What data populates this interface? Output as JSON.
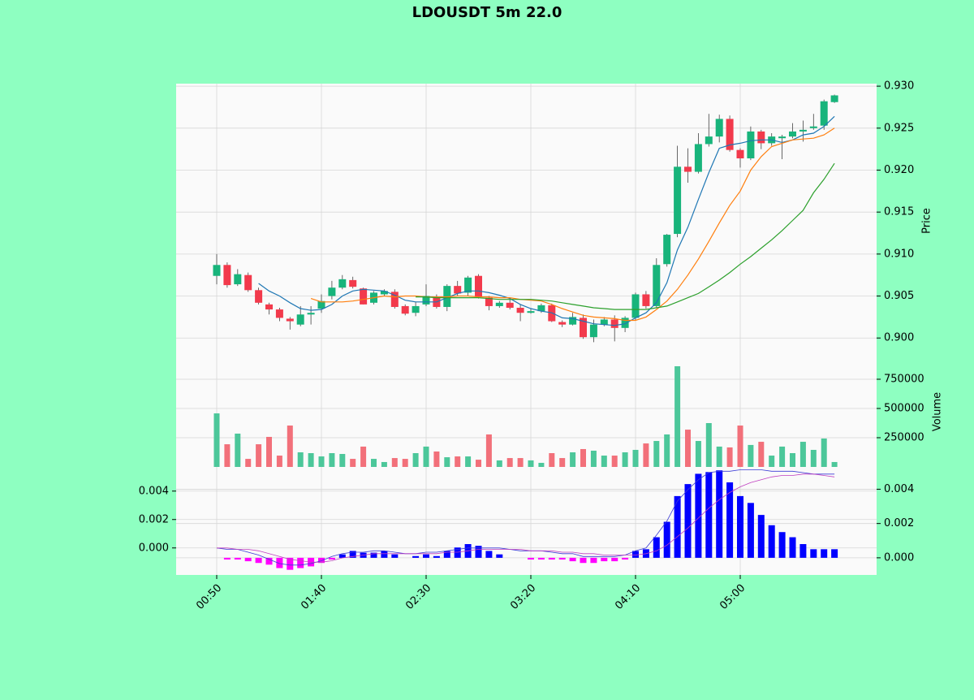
{
  "chart_data": [
    {
      "type": "candlestick",
      "title": "LDOUSDT 5m 22.0",
      "ylabel": "Price",
      "open": [
        0.9074,
        0.9087,
        0.9064,
        0.9075,
        0.9057,
        0.904,
        0.9034,
        0.9023,
        0.9016,
        0.9028,
        0.9035,
        0.905,
        0.906,
        0.9069,
        0.9059,
        0.9042,
        0.9052,
        0.9055,
        0.9038,
        0.903,
        0.904,
        0.9048,
        0.9037,
        0.9062,
        0.9054,
        0.9074,
        0.9048,
        0.9038,
        0.9042,
        0.9036,
        0.903,
        0.9032,
        0.9039,
        0.9019,
        0.9016,
        0.9024,
        0.9001,
        0.9016,
        0.9022,
        0.9012,
        0.9024,
        0.9052,
        0.9038,
        0.9088,
        0.9124,
        0.9204,
        0.9198,
        0.9231,
        0.924,
        0.9261,
        0.9224,
        0.9214,
        0.9246,
        0.9232,
        0.9238,
        0.924,
        0.9246,
        0.925,
        0.9253,
        0.9281
      ],
      "high": [
        0.91,
        0.909,
        0.9082,
        0.9078,
        0.906,
        0.9042,
        0.9036,
        0.9025,
        0.9038,
        0.9038,
        0.9052,
        0.9068,
        0.9075,
        0.9073,
        0.906,
        0.9056,
        0.9058,
        0.9058,
        0.904,
        0.9043,
        0.9064,
        0.9052,
        0.9064,
        0.9068,
        0.9074,
        0.9076,
        0.905,
        0.9044,
        0.9046,
        0.904,
        0.9035,
        0.9041,
        0.9041,
        0.9021,
        0.903,
        0.9028,
        0.9022,
        0.9025,
        0.9027,
        0.9026,
        0.9054,
        0.9056,
        0.9095,
        0.9124,
        0.9229,
        0.9226,
        0.9244,
        0.9267,
        0.9266,
        0.9265,
        0.9226,
        0.9252,
        0.9248,
        0.9244,
        0.9242,
        0.9256,
        0.9259,
        0.9267,
        0.9284,
        0.929
      ],
      "low": [
        0.9064,
        0.906,
        0.9062,
        0.9055,
        0.904,
        0.9028,
        0.902,
        0.901,
        0.9014,
        0.9016,
        0.903,
        0.9046,
        0.9058,
        0.9059,
        0.904,
        0.904,
        0.905,
        0.9035,
        0.9027,
        0.9026,
        0.9038,
        0.9035,
        0.9032,
        0.905,
        0.905,
        0.9047,
        0.9033,
        0.9036,
        0.9034,
        0.902,
        0.9029,
        0.903,
        0.9019,
        0.9013,
        0.9015,
        0.8999,
        0.8995,
        0.9014,
        0.8996,
        0.9007,
        0.9021,
        0.9035,
        0.9036,
        0.9085,
        0.912,
        0.9185,
        0.9196,
        0.9228,
        0.9233,
        0.9222,
        0.9203,
        0.9212,
        0.9225,
        0.9229,
        0.9213,
        0.9238,
        0.9234,
        0.9248,
        0.9248,
        0.928
      ],
      "close": [
        0.9087,
        0.9063,
        0.9076,
        0.9057,
        0.9042,
        0.9034,
        0.9024,
        0.902,
        0.9028,
        0.903,
        0.9044,
        0.906,
        0.907,
        0.9061,
        0.904,
        0.9054,
        0.9056,
        0.9037,
        0.9029,
        0.9038,
        0.905,
        0.9037,
        0.9062,
        0.9053,
        0.9072,
        0.9049,
        0.9038,
        0.9042,
        0.9036,
        0.903,
        0.9032,
        0.9039,
        0.902,
        0.9016,
        0.9025,
        0.9001,
        0.9016,
        0.9022,
        0.9012,
        0.9024,
        0.9052,
        0.9038,
        0.9087,
        0.9123,
        0.9204,
        0.9198,
        0.9231,
        0.924,
        0.9261,
        0.9224,
        0.9214,
        0.9246,
        0.9232,
        0.924,
        0.924,
        0.9246,
        0.9248,
        0.9252,
        0.9282,
        0.9289
      ],
      "up_color": "#18b47b",
      "down_color": "#f23a4c",
      "series": [
        {
          "color": "#1f77b4",
          "values": [
            null,
            null,
            null,
            null,
            0.9065,
            0.9056,
            0.905,
            0.9042,
            0.9035,
            0.9033,
            0.9034,
            0.904,
            0.905,
            0.9056,
            0.9058,
            0.9057,
            0.9056,
            0.9051,
            0.9045,
            0.9043,
            0.9043,
            0.9043,
            0.9048,
            0.9053,
            0.9056,
            0.9056,
            0.9054,
            0.9051,
            0.9047,
            0.904,
            0.9035,
            0.9032,
            0.903,
            0.9024,
            0.9023,
            0.902,
            0.9017,
            0.9016,
            0.9015,
            0.9017,
            0.9024,
            0.903,
            0.9042,
            0.9066,
            0.9105,
            0.9132,
            0.9165,
            0.9197,
            0.9226,
            0.923,
            0.9232,
            0.9235,
            0.9236,
            0.9236,
            0.9233,
            0.9236,
            0.9242,
            0.9244,
            0.9252,
            0.9264
          ]
        },
        {
          "color": "#ff7f0e",
          "values": [
            null,
            null,
            null,
            null,
            null,
            null,
            null,
            null,
            null,
            0.9047,
            0.9043,
            0.9043,
            0.9043,
            0.9044,
            0.9046,
            0.9048,
            0.905,
            0.9049,
            0.905,
            0.905,
            0.9049,
            0.9049,
            0.9049,
            0.905,
            0.905,
            0.9049,
            0.9049,
            0.9048,
            0.9048,
            0.9046,
            0.9045,
            0.9044,
            0.904,
            0.9035,
            0.9031,
            0.9027,
            0.9025,
            0.9024,
            0.9023,
            0.9021,
            0.9021,
            0.9025,
            0.9034,
            0.9044,
            0.9058,
            0.9075,
            0.9094,
            0.9115,
            0.9137,
            0.9158,
            0.9175,
            0.92,
            0.9216,
            0.9228,
            0.9232,
            0.9236,
            0.9237,
            0.9238,
            0.9242,
            0.925
          ]
        },
        {
          "color": "#2ca02c",
          "values": [
            null,
            null,
            null,
            null,
            null,
            null,
            null,
            null,
            null,
            null,
            null,
            null,
            null,
            null,
            null,
            null,
            null,
            null,
            null,
            0.9049,
            0.9049,
            0.9048,
            0.9048,
            0.9048,
            0.9048,
            0.9048,
            0.9047,
            0.9046,
            0.9046,
            0.9046,
            0.9046,
            0.9045,
            0.9044,
            0.9042,
            0.904,
            0.9038,
            0.9036,
            0.9035,
            0.9034,
            0.9034,
            0.9034,
            0.9034,
            0.9036,
            0.9038,
            0.9043,
            0.9048,
            0.9053,
            0.9061,
            0.9069,
            0.9078,
            0.9088,
            0.9097,
            0.9107,
            0.9117,
            0.9128,
            0.914,
            0.9152,
            0.9173,
            0.9189,
            0.9208
          ]
        }
      ],
      "ylim": [
        0.8977,
        0.9303
      ],
      "yticks": [
        {
          "value": 0.9,
          "label": "0.900"
        },
        {
          "value": 0.905,
          "label": "0.905"
        },
        {
          "value": 0.91,
          "label": "0.910"
        },
        {
          "value": 0.915,
          "label": "0.915"
        },
        {
          "value": 0.92,
          "label": "0.920"
        },
        {
          "value": 0.925,
          "label": "0.925"
        },
        {
          "value": 0.93,
          "label": "0.930"
        }
      ],
      "grid": true
    },
    {
      "type": "volume",
      "ylabel": "Volume",
      "values": [
        458000,
        194000,
        285000,
        69000,
        194000,
        257000,
        97000,
        354000,
        125000,
        118000,
        90000,
        118000,
        111000,
        69000,
        174000,
        69000,
        42000,
        76000,
        69000,
        118000,
        174000,
        132000,
        83000,
        90000,
        90000,
        62000,
        278000,
        56000,
        76000,
        76000,
        56000,
        35000,
        118000,
        76000,
        125000,
        153000,
        139000,
        97000,
        97000,
        125000,
        146000,
        201000,
        222000,
        278000,
        861000,
        319000,
        222000,
        375000,
        174000,
        167000,
        354000,
        188000,
        215000,
        97000,
        174000,
        118000,
        215000,
        146000,
        243000,
        42000
      ],
      "up_color": "#4cc79a",
      "down_color": "#f2707a",
      "ylim": [
        0,
        937500
      ],
      "yticks": [
        250000,
        500000,
        750000
      ],
      "grid": true
    },
    {
      "type": "macd",
      "categories": [
        "00:50",
        null,
        null,
        null,
        null,
        null,
        null,
        null,
        null,
        null,
        "01:40",
        null,
        null,
        null,
        null,
        null,
        null,
        null,
        null,
        null,
        "02:30",
        null,
        null,
        null,
        null,
        null,
        null,
        null,
        null,
        null,
        "03:20",
        null,
        null,
        null,
        null,
        null,
        null,
        null,
        null,
        null,
        "04:10",
        null,
        null,
        null,
        null,
        null,
        null,
        null,
        null,
        null,
        "05:00",
        null,
        null,
        null,
        null,
        null,
        null,
        null,
        null,
        null
      ],
      "series": [
        {
          "type": "bar",
          "axis": "y2",
          "color": "#0000ff",
          "negative_color": "#ff00ff",
          "values": [
            null,
            -0.0001,
            -0.0001,
            -0.0002,
            -0.0003,
            -0.0004,
            -0.0006,
            -0.0007,
            -0.0006,
            -0.0005,
            -0.0003,
            -0.0001,
            0.0002,
            0.0004,
            0.0003,
            0.0003,
            0.0004,
            0.0002,
            0.0,
            0.0001,
            0.0002,
            0.0001,
            0.0004,
            0.0006,
            0.0008,
            0.0007,
            0.0004,
            0.0002,
            0.0,
            0.0,
            -0.0001,
            -0.0001,
            -0.0001,
            -0.0001,
            -0.0002,
            -0.0003,
            -0.0003,
            -0.0002,
            -0.0002,
            -0.0001,
            0.0004,
            0.0005,
            0.0012,
            0.0021,
            0.0036,
            0.0043,
            0.0049,
            0.005,
            0.0051,
            0.0044,
            0.0036,
            0.0032,
            0.0025,
            0.0019,
            0.0015,
            0.0012,
            0.0008,
            0.0005,
            0.0005,
            0.0005
          ]
        },
        {
          "type": "line",
          "color": "#3a3ad6",
          "values": [
            0.0,
            -0.0001,
            -0.0001,
            -0.0003,
            -0.0005,
            -0.0008,
            -0.0011,
            -0.0012,
            -0.0012,
            -0.0011,
            -0.0009,
            -0.0006,
            -0.0004,
            -0.0003,
            -0.0003,
            -0.0002,
            -0.0002,
            -0.0003,
            -0.0004,
            -0.0004,
            -0.0003,
            -0.0003,
            -0.0002,
            -0.0001,
            0.0,
            0.0,
            0.0,
            0.0,
            -0.0001,
            -0.0002,
            -0.0002,
            -0.0002,
            -0.0003,
            -0.0004,
            -0.0004,
            -0.0006,
            -0.0006,
            -0.0006,
            -0.0006,
            -0.0005,
            -0.0002,
            0.0,
            0.0009,
            0.0019,
            0.0033,
            0.0041,
            0.0048,
            0.0053,
            0.0054,
            0.0054,
            0.0055,
            0.0055,
            0.0055,
            0.0054,
            0.0054,
            0.0054,
            0.0053,
            0.0052,
            0.0052,
            0.0052
          ]
        },
        {
          "type": "line",
          "color": "#c040c0",
          "values": [
            0.0,
            0.0,
            -0.0001,
            -0.0001,
            -0.0002,
            -0.0004,
            -0.0006,
            -0.0008,
            -0.0009,
            -0.001,
            -0.001,
            -0.0009,
            -0.0007,
            -0.0006,
            -0.0005,
            -0.0004,
            -0.0004,
            -0.0004,
            -0.0004,
            -0.0004,
            -0.0004,
            -0.0004,
            -0.0003,
            -0.0003,
            -0.0002,
            -0.0001,
            -0.0001,
            -0.0001,
            -0.0001,
            -0.0001,
            -0.0002,
            -0.0002,
            -0.0002,
            -0.0003,
            -0.0003,
            -0.0004,
            -0.0004,
            -0.0005,
            -0.0005,
            -0.0005,
            -0.0005,
            -0.0004,
            -0.0002,
            0.0002,
            0.0008,
            0.0014,
            0.0021,
            0.0028,
            0.0034,
            0.0039,
            0.0043,
            0.0046,
            0.0048,
            0.005,
            0.0051,
            0.0051,
            0.0052,
            0.0052,
            0.0051,
            0.005
          ]
        }
      ],
      "ylim": [
        -0.0019,
        0.0057
      ],
      "yticks": [
        {
          "value": 0.0,
          "label": "0.000"
        },
        {
          "value": 0.002,
          "label": "0.002"
        },
        {
          "value": 0.004,
          "label": "0.004"
        }
      ],
      "y2lim": [
        -0.001,
        0.0053
      ],
      "y2ticks": [
        {
          "value": 0.0,
          "label": "0.000"
        },
        {
          "value": 0.002,
          "label": "0.002"
        },
        {
          "value": 0.004,
          "label": "0.004"
        }
      ],
      "grid": true
    }
  ]
}
